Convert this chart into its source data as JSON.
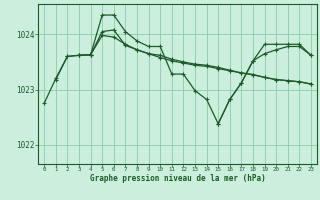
{
  "title": "Graphe pression niveau de la mer (hPa)",
  "bg_color": "#cceedd",
  "grid_color": "#88ccaa",
  "line_color": "#1a5c28",
  "xlim": [
    -0.5,
    23.5
  ],
  "ylim": [
    1021.65,
    1024.55
  ],
  "yticks": [
    1022,
    1023,
    1024
  ],
  "xticks": [
    0,
    1,
    2,
    3,
    4,
    5,
    6,
    7,
    8,
    9,
    10,
    11,
    12,
    13,
    14,
    15,
    16,
    17,
    18,
    19,
    20,
    21,
    22,
    23
  ],
  "series": [
    {
      "x": [
        0,
        1,
        2,
        3,
        4,
        5,
        6,
        7,
        8,
        9,
        10,
        11,
        12,
        13,
        14,
        15,
        16,
        17,
        18,
        19,
        20,
        21,
        22,
        23
      ],
      "y": [
        1022.75,
        1023.2,
        1023.6,
        1023.62,
        1023.63,
        1024.05,
        1024.08,
        1023.8,
        1023.72,
        1023.65,
        1023.58,
        1023.52,
        1023.48,
        1023.44,
        1023.42,
        1023.38,
        1023.34,
        1023.3,
        1023.27,
        1023.22,
        1023.18,
        1023.16,
        1023.14,
        1023.1
      ]
    },
    {
      "x": [
        3,
        4,
        5,
        6,
        7,
        8,
        9,
        10,
        11,
        12,
        13,
        14,
        15,
        16,
        17,
        18,
        19,
        20,
        21,
        22,
        23
      ],
      "y": [
        1023.62,
        1023.63,
        1024.35,
        1024.35,
        1024.05,
        1023.88,
        1023.78,
        1023.78,
        1023.28,
        1023.28,
        1022.98,
        1022.82,
        1022.38,
        1022.82,
        1023.12,
        1023.52,
        1023.65,
        1023.72,
        1023.78,
        1023.78,
        1023.62
      ]
    },
    {
      "x": [
        1,
        2,
        3,
        4,
        5,
        6,
        7,
        8,
        9,
        10,
        11,
        12,
        13,
        14,
        15,
        16,
        17,
        18,
        19,
        20,
        21,
        22,
        23
      ],
      "y": [
        1023.18,
        1023.6,
        1023.62,
        1023.63,
        1023.98,
        1023.95,
        1023.82,
        1023.72,
        1023.65,
        1023.62,
        1023.55,
        1023.5,
        1023.46,
        1023.44,
        1023.4,
        1023.35,
        1023.3,
        1023.27,
        1023.22,
        1023.18,
        1023.16,
        1023.14,
        1023.1
      ]
    },
    {
      "x": [
        15,
        16,
        17,
        18,
        19,
        20,
        21,
        22,
        23
      ],
      "y": [
        1022.38,
        1022.82,
        1023.12,
        1023.52,
        1023.82,
        1023.82,
        1023.82,
        1023.82,
        1023.62
      ]
    }
  ],
  "figsize": [
    3.2,
    2.0
  ],
  "dpi": 100
}
